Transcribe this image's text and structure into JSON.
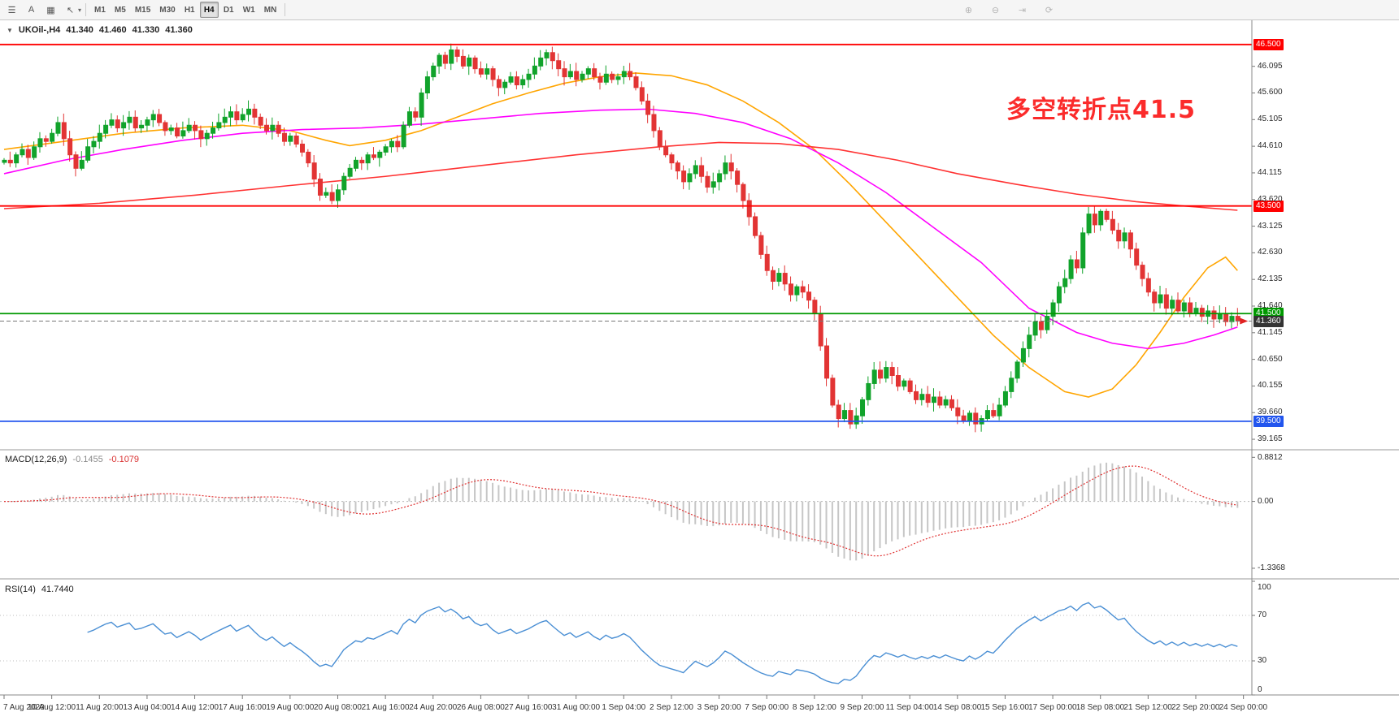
{
  "toolbar": {
    "left_icons": [
      {
        "name": "chart-list-icon",
        "glyph": "☰"
      },
      {
        "name": "text-label-icon",
        "glyph": "A"
      },
      {
        "name": "template-icon",
        "glyph": "▦"
      },
      {
        "name": "cursor-tool-icon",
        "glyph": "↖",
        "dropdown": true
      }
    ],
    "timeframes": [
      "M1",
      "M5",
      "M15",
      "M30",
      "H1",
      "H4",
      "D1",
      "W1",
      "MN"
    ],
    "active_timeframe": "H4",
    "right_icons": [
      {
        "name": "zoom-in-icon",
        "glyph": "⊕"
      },
      {
        "name": "zoom-out-icon",
        "glyph": "⊖"
      },
      {
        "name": "chart-shift-icon",
        "glyph": "⇥"
      },
      {
        "name": "auto-scroll-icon",
        "glyph": "⟳"
      }
    ]
  },
  "chart_data": {
    "type": "candlestick",
    "symbol_row": {
      "triangle": "▼",
      "symbol": "UKOil-,H4",
      "open": "41.340",
      "high": "41.460",
      "low": "41.330",
      "close": "41.360"
    },
    "annotation": {
      "text": "多空转折点41.5",
      "color": "#fb2b2b"
    },
    "colors": {
      "bull": "#11a32b",
      "bear": "#e23434",
      "ma_fast": "#ffa500",
      "ma_mid": "#ff00ff",
      "ma_slow": "#ff3333",
      "macd_hist": "#c6c6c6",
      "macd_signal": "#e03232",
      "rsi": "#4a8fd4",
      "bid_line": "#777777",
      "price_tag": "#333333"
    },
    "y_axis": {
      "ticks": [
        "46.095",
        "45.600",
        "45.105",
        "44.610",
        "44.115",
        "43.620",
        "43.125",
        "42.630",
        "42.135",
        "41.640",
        "41.145",
        "40.650",
        "40.155",
        "39.660",
        "39.165"
      ]
    },
    "levels": [
      {
        "price": 46.5,
        "label": "46.500",
        "color": "#ff0000"
      },
      {
        "price": 43.5,
        "label": "43.500",
        "color": "#ff0000"
      },
      {
        "price": 41.5,
        "label": "41.500",
        "color": "#009900"
      },
      {
        "price": 39.5,
        "label": "39.500",
        "color": "#2255ee"
      }
    ],
    "current_price": {
      "price": 41.36,
      "label": "41.360"
    },
    "closes": [
      44.35,
      44.3,
      44.45,
      44.55,
      44.4,
      44.6,
      44.75,
      44.7,
      44.85,
      45.05,
      44.75,
      44.45,
      44.2,
      44.35,
      44.6,
      44.7,
      44.85,
      45.0,
      45.1,
      44.95,
      45.05,
      45.15,
      44.95,
      45.0,
      45.1,
      45.2,
      45.05,
      44.9,
      44.95,
      44.8,
      44.9,
      45.0,
      44.9,
      44.75,
      44.85,
      44.95,
      45.05,
      45.15,
      45.25,
      45.1,
      45.2,
      45.3,
      45.15,
      45.0,
      44.9,
      45.0,
      44.85,
      44.7,
      44.8,
      44.65,
      44.5,
      44.3,
      44.0,
      43.7,
      43.75,
      43.6,
      43.8,
      44.05,
      44.2,
      44.35,
      44.3,
      44.45,
      44.4,
      44.5,
      44.6,
      44.7,
      44.6,
      45.0,
      45.25,
      45.15,
      45.6,
      45.9,
      46.1,
      46.3,
      46.15,
      46.4,
      46.28,
      46.1,
      46.25,
      46.05,
      45.95,
      46.05,
      45.85,
      45.7,
      45.8,
      45.9,
      45.75,
      45.85,
      45.95,
      46.1,
      46.25,
      46.35,
      46.2,
      46.05,
      45.9,
      46.0,
      45.85,
      45.95,
      46.05,
      45.9,
      45.8,
      45.95,
      45.85,
      45.9,
      46.0,
      45.9,
      45.7,
      45.45,
      45.2,
      44.9,
      44.6,
      44.45,
      44.3,
      44.15,
      43.95,
      44.1,
      44.25,
      44.05,
      43.85,
      43.95,
      44.1,
      44.3,
      44.15,
      43.9,
      43.6,
      43.3,
      42.95,
      42.6,
      42.3,
      42.1,
      42.25,
      42.05,
      41.85,
      42.0,
      41.9,
      41.75,
      41.5,
      40.9,
      40.3,
      39.8,
      39.55,
      39.7,
      39.45,
      39.6,
      39.9,
      40.2,
      40.45,
      40.3,
      40.5,
      40.35,
      40.15,
      40.25,
      40.05,
      39.9,
      40.0,
      39.85,
      39.95,
      39.8,
      39.9,
      39.75,
      39.6,
      39.5,
      39.65,
      39.45,
      39.55,
      39.7,
      39.6,
      39.8,
      40.05,
      40.3,
      40.6,
      40.85,
      41.1,
      41.35,
      41.2,
      41.45,
      41.7,
      42.0,
      42.15,
      42.5,
      42.35,
      43.0,
      43.35,
      43.15,
      43.4,
      43.25,
      43.05,
      42.85,
      43.0,
      42.7,
      42.4,
      42.15,
      41.9,
      41.7,
      41.85,
      41.6,
      41.75,
      41.55,
      41.7,
      41.5,
      41.6,
      41.45,
      41.55,
      41.4,
      41.5,
      41.35,
      41.45,
      41.36
    ],
    "candles_per_label": 8,
    "x_labels": [
      "7 Aug 2020",
      "10 Aug 12:00",
      "11 Aug 20:00",
      "13 Aug 04:00",
      "14 Aug 12:00",
      "17 Aug 16:00",
      "19 Aug 00:00",
      "20 Aug 08:00",
      "21 Aug 16:00",
      "24 Aug 20:00",
      "26 Aug 08:00",
      "27 Aug 16:00",
      "31 Aug 00:00",
      "1 Sep 04:00",
      "2 Sep 12:00",
      "3 Sep 20:00",
      "7 Sep 00:00",
      "8 Sep 12:00",
      "9 Sep 20:00",
      "11 Sep 04:00",
      "14 Sep 08:00",
      "15 Sep 16:00",
      "17 Sep 00:00",
      "18 Sep 08:00",
      "21 Sep 12:00",
      "22 Sep 20:00",
      "24 Sep 00:00"
    ],
    "overlays": {
      "ma_fast_orange": [
        [
          0,
          44.55
        ],
        [
          10,
          44.7
        ],
        [
          20,
          44.85
        ],
        [
          30,
          44.95
        ],
        [
          40,
          45.0
        ],
        [
          48,
          44.9
        ],
        [
          54,
          44.72
        ],
        [
          58,
          44.62
        ],
        [
          64,
          44.72
        ],
        [
          70,
          44.9
        ],
        [
          76,
          45.15
        ],
        [
          82,
          45.4
        ],
        [
          88,
          45.6
        ],
        [
          94,
          45.78
        ],
        [
          100,
          45.9
        ],
        [
          106,
          45.97
        ],
        [
          112,
          45.92
        ],
        [
          118,
          45.75
        ],
        [
          124,
          45.45
        ],
        [
          130,
          45.05
        ],
        [
          136,
          44.55
        ],
        [
          142,
          43.9
        ],
        [
          148,
          43.2
        ],
        [
          154,
          42.5
        ],
        [
          160,
          41.8
        ],
        [
          166,
          41.1
        ],
        [
          172,
          40.5
        ],
        [
          178,
          40.05
        ],
        [
          182,
          39.95
        ],
        [
          186,
          40.1
        ],
        [
          190,
          40.55
        ],
        [
          194,
          41.15
        ],
        [
          198,
          41.8
        ],
        [
          202,
          42.35
        ],
        [
          205,
          42.55
        ],
        [
          207,
          42.3
        ]
      ],
      "ma_mid_magenta": [
        [
          0,
          44.1
        ],
        [
          10,
          44.35
        ],
        [
          20,
          44.55
        ],
        [
          30,
          44.72
        ],
        [
          40,
          44.85
        ],
        [
          50,
          44.92
        ],
        [
          60,
          44.95
        ],
        [
          70,
          45.02
        ],
        [
          80,
          45.12
        ],
        [
          90,
          45.22
        ],
        [
          100,
          45.28
        ],
        [
          108,
          45.3
        ],
        [
          116,
          45.22
        ],
        [
          124,
          45.05
        ],
        [
          132,
          44.75
        ],
        [
          140,
          44.3
        ],
        [
          148,
          43.75
        ],
        [
          156,
          43.1
        ],
        [
          164,
          42.45
        ],
        [
          172,
          41.6
        ],
        [
          180,
          41.15
        ],
        [
          186,
          40.95
        ],
        [
          192,
          40.85
        ],
        [
          198,
          40.95
        ],
        [
          203,
          41.1
        ],
        [
          207,
          41.25
        ]
      ],
      "ma_slow_red": [
        [
          0,
          43.45
        ],
        [
          16,
          43.55
        ],
        [
          32,
          43.7
        ],
        [
          48,
          43.88
        ],
        [
          64,
          44.05
        ],
        [
          80,
          44.25
        ],
        [
          96,
          44.45
        ],
        [
          110,
          44.6
        ],
        [
          120,
          44.68
        ],
        [
          130,
          44.66
        ],
        [
          140,
          44.55
        ],
        [
          150,
          44.35
        ],
        [
          160,
          44.1
        ],
        [
          170,
          43.9
        ],
        [
          180,
          43.72
        ],
        [
          190,
          43.58
        ],
        [
          198,
          43.5
        ],
        [
          207,
          43.42
        ]
      ]
    },
    "macd": {
      "name": "MACD(12,26,9)",
      "main_value": "-0.1455",
      "signal_value": "-0.1079",
      "params": [
        12,
        26,
        9
      ],
      "axis": [
        {
          "label": "0.8812",
          "value": 0.8812
        },
        {
          "label": "0.00",
          "value": 0
        },
        {
          "label": "-1.3368",
          "value": -1.3368
        }
      ]
    },
    "rsi": {
      "name": "RSI(14)",
      "value": "41.7440",
      "period": 14,
      "level_lines": [
        70,
        30
      ],
      "axis": [
        {
          "label": "100",
          "value": 100
        },
        {
          "label": "70",
          "value": 70
        },
        {
          "label": "30",
          "value": 30
        },
        {
          "label": "0",
          "value": 0
        }
      ]
    }
  }
}
